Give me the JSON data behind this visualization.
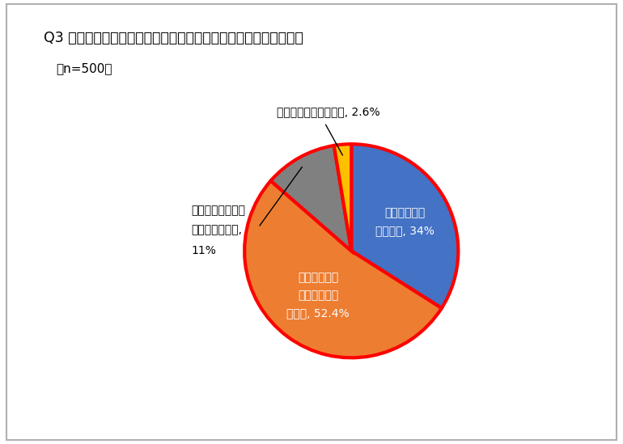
{
  "title": "Q3 テレワークを実施して自身の生産性は上がったと思いますか？",
  "subtitle": "（n=500）",
  "values": [
    34.0,
    52.4,
    11.0,
    2.6
  ],
  "colors": [
    "#4472C4",
    "#ED7D31",
    "#808080",
    "#FFC000"
  ],
  "edge_color": "#FF0000",
  "edge_width": 3.0,
  "startangle": 90,
  "background_color": "#ffffff",
  "label_slice0": "とても上がっ\nたと思う, 34%",
  "label_slice1": "どちらかとい\nえば上がった\nと思う, 52.4%",
  "label_slice2_line1": "どちらかといえば",
  "label_slice2_line2": "下がったと思う,",
  "label_slice2_line3": "11%",
  "label_slice3": "とても下がったと思う, 2.6%"
}
